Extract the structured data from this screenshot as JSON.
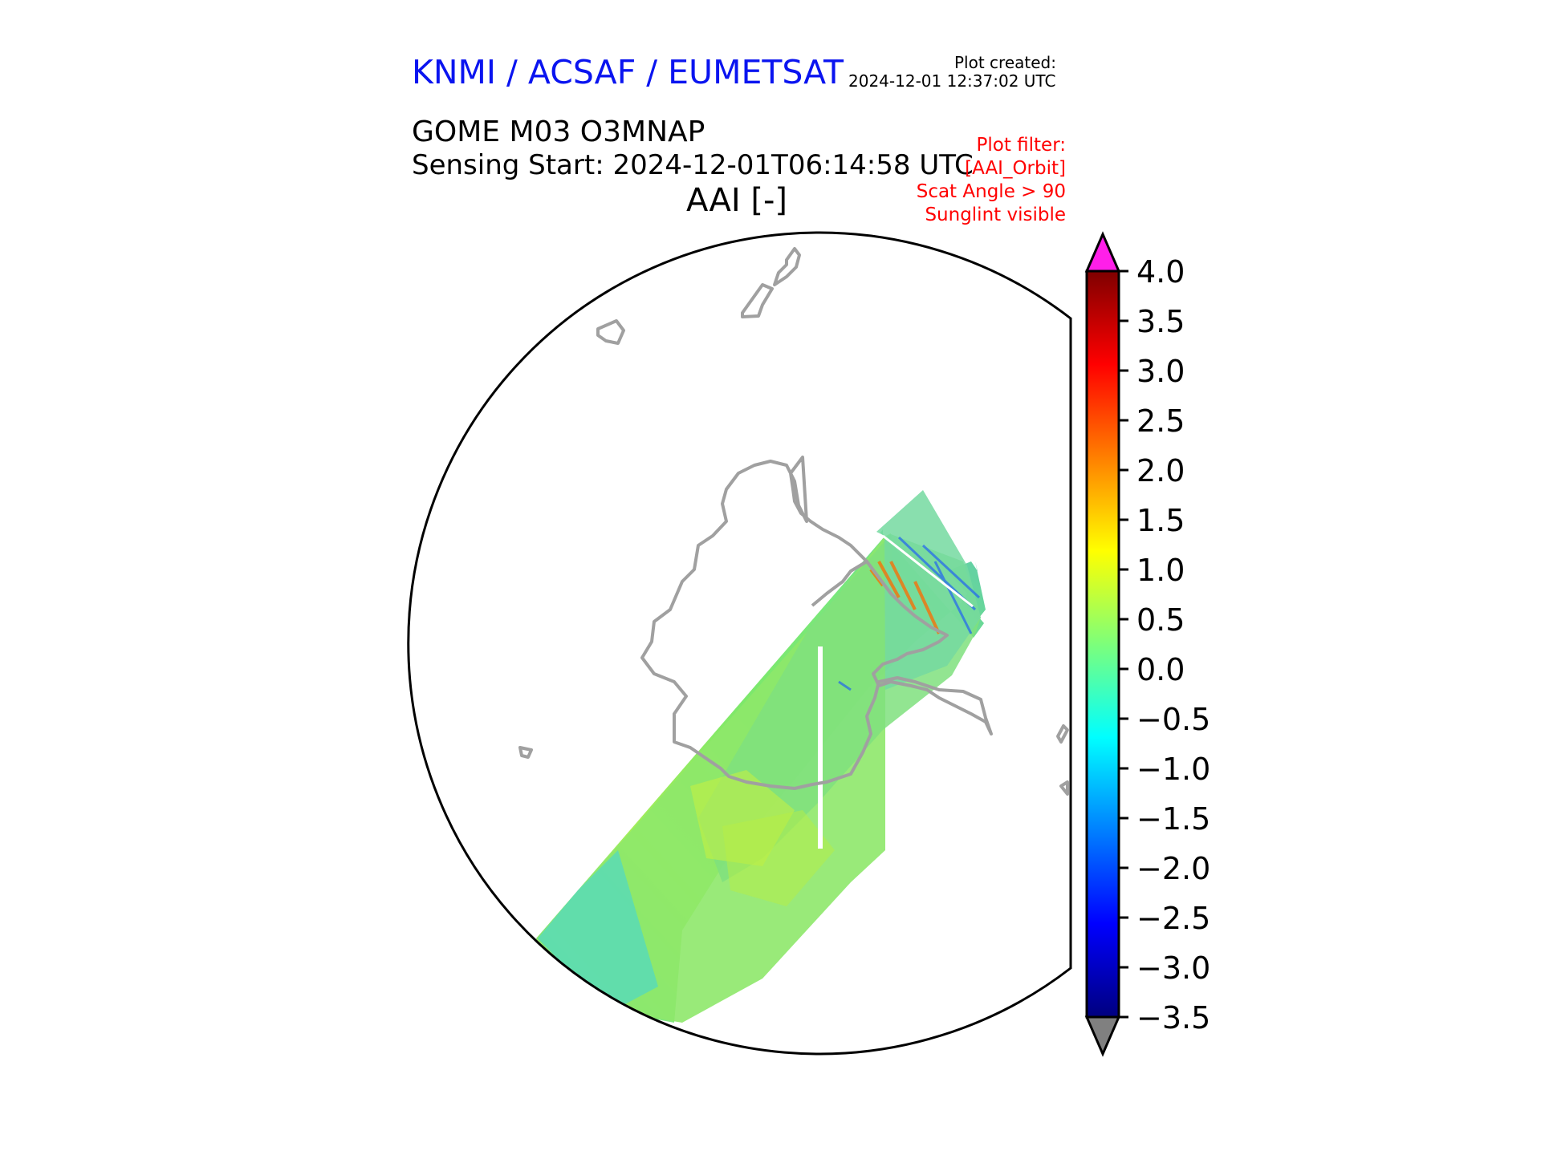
{
  "header": {
    "organization": "KNMI / ACSAF / EUMETSAT",
    "plot_created_label": "Plot created:",
    "plot_created_value": "2024-12-01 12:37:02 UTC",
    "product": "GOME M03 O3MNAP",
    "sensing_start": "Sensing Start: 2024-12-01T06:14:58 UTC",
    "variable_title": "AAI [-]"
  },
  "plot_filter": {
    "lines": [
      "Plot filter:",
      "[AAI_Orbit]",
      "Scat Angle > 90",
      "Sunglint visible"
    ]
  },
  "colorbar": {
    "min": -3.5,
    "max": 4.0,
    "tick_labels": [
      "4.0",
      "3.5",
      "3.0",
      "2.5",
      "2.0",
      "1.5",
      "1.0",
      "0.5",
      "0.0",
      "−0.5",
      "−1.0",
      "−1.5",
      "−2.0",
      "−2.5",
      "−3.0",
      "−3.5"
    ],
    "tick_values": [
      4.0,
      3.5,
      3.0,
      2.5,
      2.0,
      1.5,
      1.0,
      0.5,
      0.0,
      -0.5,
      -1.0,
      -1.5,
      -2.0,
      -2.5,
      -3.0,
      -3.5
    ],
    "over_color": "#ff1fe9",
    "under_color": "#808080",
    "colormap": "jet"
  },
  "colors": {
    "org_text": "#0a14f0",
    "filter_text": "#ff0000",
    "coastline": "#a0a0a0",
    "swath_base": "#7fe36a"
  },
  "map": {
    "projection": "south-polar-stereographic",
    "region": "Antarctica"
  }
}
